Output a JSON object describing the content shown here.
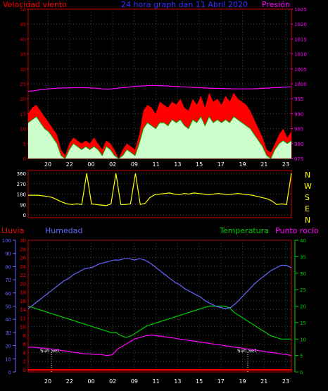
{
  "header": {
    "wind_label": "Velocidad viento",
    "title": "24 hora graph dan 11 Abril 2020",
    "pressure_label": "Presión"
  },
  "direction_labels": [
    "N",
    "W",
    "S",
    "E",
    "N"
  ],
  "lower_labels": {
    "rain": "Lluvia",
    "humidity": "Humedad",
    "temperature": "Temperatura",
    "dewpoint": "Punto rocío",
    "sunset_left": "Sun Set",
    "sunset_right": "Sun Set"
  },
  "colors": {
    "wind_gust": "#ff0000",
    "wind_avg": "#ccffcc",
    "pressure": "#ff00ff",
    "direction": "#ffff00",
    "humidity": "#6666ff",
    "temperature": "#00cc00",
    "dewpoint": "#ff00ff",
    "rain": "#ff0000",
    "frame": "#cc0000",
    "grid": "#444444"
  },
  "chart_data": [
    {
      "type": "area",
      "title": "24 hora graph dan 11 Abril 2020",
      "x_ticks": [
        "20",
        "22",
        "00",
        "02",
        "09",
        "11",
        "13",
        "15",
        "17",
        "19",
        "21",
        "23"
      ],
      "y_left": {
        "label": "Velocidad viento",
        "ticks": [
          0,
          5,
          10,
          15,
          20,
          25,
          30,
          35,
          40,
          45,
          50
        ],
        "range": [
          0,
          50
        ]
      },
      "y_right": {
        "label": "Presión",
        "ticks": [
          975,
          980,
          985,
          990,
          995,
          1000,
          1005,
          1010,
          1015,
          1020,
          1025
        ],
        "range": [
          975,
          1025
        ]
      },
      "series": [
        {
          "name": "gust",
          "values": [
            15,
            17,
            18,
            16,
            14,
            12,
            10,
            8,
            3,
            1,
            5,
            7,
            6,
            5,
            6,
            5,
            7,
            5,
            3,
            6,
            5,
            3,
            0,
            3,
            5,
            4,
            3,
            8,
            16,
            18,
            17,
            15,
            19,
            18,
            17,
            19,
            18,
            20,
            17,
            16,
            20,
            18,
            21,
            17,
            22,
            19,
            20,
            18,
            21,
            19,
            22,
            20,
            19,
            18,
            16,
            13,
            10,
            7,
            3,
            2,
            5,
            8,
            10,
            7,
            9
          ]
        },
        {
          "name": "speed",
          "values": [
            12,
            13,
            14,
            12,
            10,
            9,
            7,
            5,
            1,
            0,
            3,
            5,
            4,
            3,
            4,
            3,
            4,
            3,
            1,
            4,
            3,
            1,
            0,
            1,
            3,
            2,
            1,
            5,
            10,
            12,
            11,
            10,
            12,
            12,
            11,
            13,
            12,
            13,
            11,
            10,
            13,
            12,
            14,
            11,
            14,
            12,
            13,
            12,
            13,
            12,
            14,
            13,
            12,
            11,
            10,
            8,
            6,
            4,
            1,
            0,
            3,
            5,
            6,
            5,
            6
          ]
        },
        {
          "name": "pressure",
          "values": [
            997.5,
            997.7,
            998,
            998.2,
            998.4,
            998.5,
            998.6,
            998.6,
            998.7,
            998.7,
            998.7,
            998.6,
            998.5,
            998.3,
            998.2,
            998.4,
            998.6,
            998.8,
            999,
            999.2,
            999.3,
            999.4,
            999.4,
            999.4,
            999.3,
            999.2,
            999.1,
            999,
            998.9,
            998.8,
            998.7,
            998.6,
            998.5,
            998.5,
            998.4,
            998.4,
            998.3,
            998.3,
            998.3,
            998.3,
            998.4,
            998.5,
            998.6,
            998.7,
            998.8,
            998.9,
            999
          ]
        }
      ]
    },
    {
      "type": "line",
      "title": "",
      "y_ticks": [
        0,
        90,
        180,
        270,
        360
      ],
      "range": [
        0,
        360
      ],
      "series": [
        {
          "name": "direction",
          "values": [
            170,
            170,
            170,
            165,
            160,
            150,
            130,
            110,
            95,
            90,
            95,
            90,
            360,
            95,
            90,
            85,
            80,
            95,
            360,
            90,
            90,
            95,
            360,
            90,
            100,
            150,
            175,
            180,
            185,
            190,
            180,
            175,
            185,
            180,
            190,
            185,
            180,
            175,
            180,
            185,
            180,
            175,
            180,
            185,
            180,
            175,
            170,
            160,
            150,
            140,
            120,
            90,
            95,
            90,
            360
          ]
        }
      ]
    },
    {
      "type": "line",
      "title": "",
      "x_ticks": [
        "20",
        "22",
        "00",
        "02",
        "09",
        "11",
        "13",
        "15",
        "17",
        "19",
        "21",
        "23"
      ],
      "y_axes": {
        "humidity": {
          "label": "Humedad",
          "ticks": [
            0,
            10,
            20,
            30,
            40,
            50,
            60,
            70,
            80,
            90,
            100
          ],
          "range": [
            0,
            100
          ]
        },
        "rain": {
          "label": "Lluvia",
          "ticks": [
            0,
            2,
            4,
            6,
            8,
            10,
            12,
            14,
            16,
            18,
            20,
            22,
            24,
            26,
            28,
            30
          ],
          "range": [
            0,
            30
          ]
        },
        "temperature": {
          "label": "Temperatura",
          "ticks": [
            0,
            5,
            10,
            15,
            20,
            25,
            30,
            35,
            40
          ],
          "range": [
            0,
            40
          ]
        }
      },
      "series": [
        {
          "name": "humidity",
          "values": [
            48,
            51,
            54,
            57,
            60,
            63,
            66,
            69,
            71,
            74,
            76,
            78,
            79,
            80,
            82,
            83,
            84,
            85,
            85,
            86,
            86,
            85,
            86,
            85,
            83,
            80,
            77,
            74,
            71,
            68,
            66,
            63,
            61,
            59,
            57,
            54,
            52,
            50,
            49,
            48,
            49,
            52,
            56,
            60,
            64,
            68,
            71,
            74,
            77,
            79,
            81,
            81,
            79
          ]
        },
        {
          "name": "temperature",
          "values": [
            20,
            19.5,
            19,
            18.5,
            18,
            17.5,
            17,
            16.5,
            16,
            15.5,
            15,
            14.5,
            14,
            13.5,
            13,
            12.5,
            12,
            12,
            11,
            10.5,
            11,
            12,
            13,
            14,
            14.5,
            15,
            15.5,
            16,
            16.5,
            17,
            17.5,
            18,
            18.5,
            19,
            19.5,
            20,
            20,
            20,
            20,
            19.5,
            18,
            17,
            16,
            15,
            14,
            13,
            12,
            11,
            10.5,
            10,
            10,
            10
          ]
        },
        {
          "name": "dewpoint",
          "values": [
            7.5,
            7.5,
            7.3,
            7.2,
            7,
            6.8,
            6.5,
            6.3,
            6,
            5.8,
            5.5,
            5.5,
            5.3,
            5.3,
            5,
            5.2,
            7,
            8,
            9,
            10,
            10.5,
            11,
            11.2,
            11,
            10.8,
            10.5,
            10.3,
            10,
            9.8,
            9.5,
            9.3,
            9,
            8.8,
            8.5,
            8.3,
            8,
            7.8,
            7.5,
            7.3,
            7,
            6.8,
            6.5,
            6.3,
            6,
            5.8,
            5.5,
            5.3,
            5
          ]
        },
        {
          "name": "rain",
          "values": [
            0,
            0,
            0,
            0,
            0,
            0,
            0,
            0,
            0,
            0,
            0,
            0,
            0,
            0,
            0,
            0,
            0,
            0,
            0,
            0
          ]
        }
      ]
    }
  ]
}
